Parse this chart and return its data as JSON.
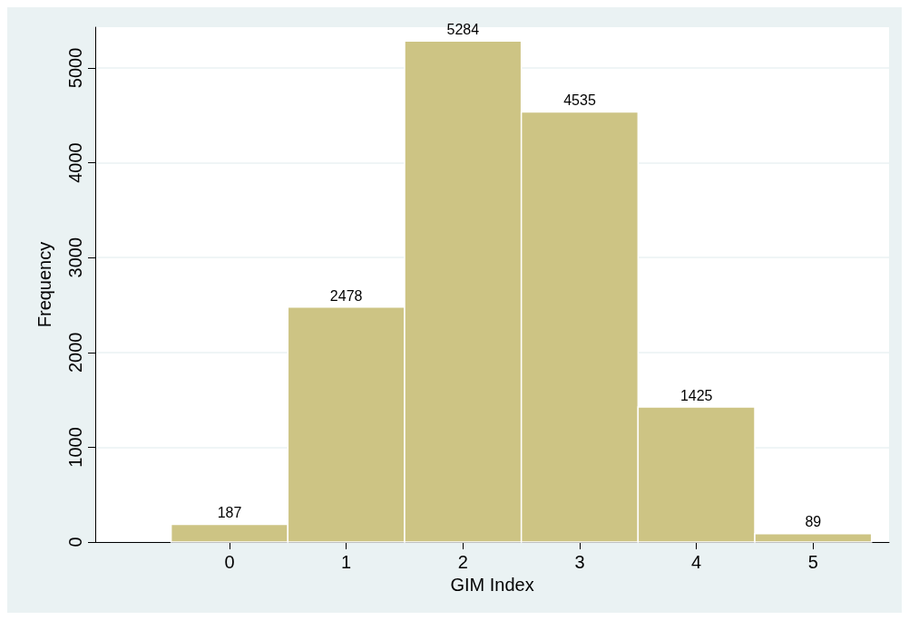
{
  "chart_data": {
    "type": "histogram",
    "xlabel": "GIM Index",
    "ylabel": "Frequency",
    "bins": [
      -0.5,
      0.5,
      1.5,
      2.5,
      3.5,
      4.5,
      5.5
    ],
    "values": [
      187,
      2478,
      5284,
      4535,
      1425,
      89
    ],
    "color": "#cdc484",
    "xlim": [
      -1.15,
      5.65
    ],
    "xticks": [
      0,
      1,
      2,
      3,
      4,
      5
    ],
    "ylim": [
      0,
      5430
    ],
    "yticks": [
      0,
      1000,
      2000,
      3000,
      4000,
      5000
    ],
    "grid": "y",
    "data_labels": true
  }
}
